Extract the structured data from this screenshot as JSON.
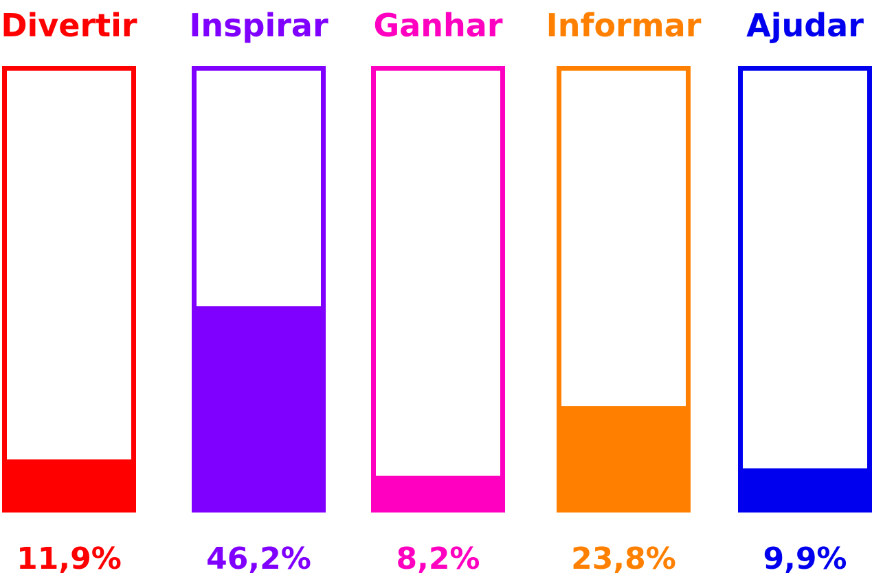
{
  "chart_data": {
    "type": "bar",
    "title": "",
    "xlabel": "",
    "ylabel": "",
    "ylim": [
      0,
      100
    ],
    "grid": false,
    "legend": "none",
    "categories": [
      "Divertir",
      "Inspirar",
      "Ganhar",
      "Informar",
      "Ajudar"
    ],
    "values": [
      11.9,
      46.2,
      8.2,
      23.8,
      9.9
    ],
    "value_labels": [
      "11,9%",
      "46,2%",
      "8,2%",
      "23,8%",
      "9,9%"
    ],
    "colors": [
      "#ff0000",
      "#8000ff",
      "#ff00c0",
      "#ff8000",
      "#0000ee"
    ]
  }
}
